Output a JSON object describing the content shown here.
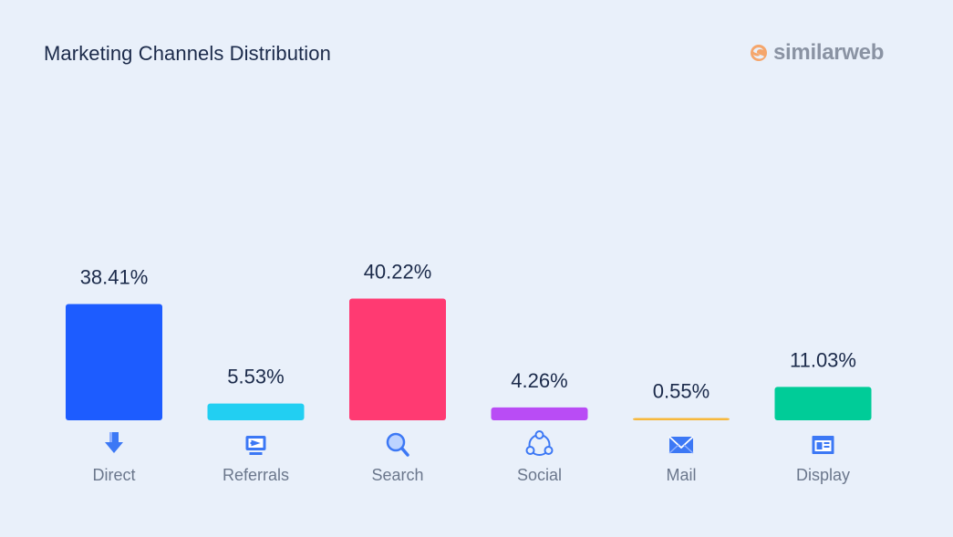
{
  "header": {
    "title": "Marketing Channels Distribution",
    "brand": "similarweb"
  },
  "chart_data": {
    "type": "bar",
    "title": "Marketing Channels Distribution",
    "categories": [
      "Direct",
      "Referrals",
      "Search",
      "Social",
      "Mail",
      "Display"
    ],
    "values": [
      38.41,
      5.53,
      40.22,
      4.26,
      0.55,
      11.03
    ],
    "value_labels": [
      "38.41%",
      "5.53%",
      "40.22%",
      "4.26%",
      "0.55%",
      "11.03%"
    ],
    "colors": [
      "#1d5cff",
      "#22cff2",
      "#ff3a72",
      "#b94cf5",
      "#f7b83b",
      "#00cc98"
    ],
    "icons": [
      "direct-arrow-icon",
      "referrals-monitor-icon",
      "search-magnifier-icon",
      "social-network-icon",
      "mail-envelope-icon",
      "display-window-icon"
    ],
    "unit": "%",
    "grid": false,
    "legend": "none"
  }
}
